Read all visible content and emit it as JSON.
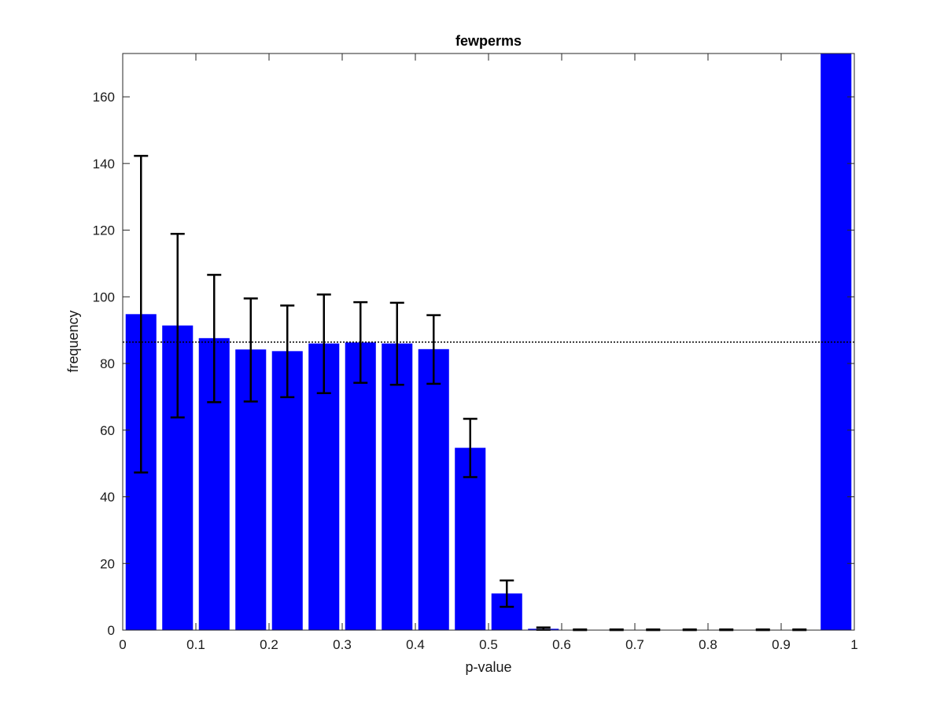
{
  "chart_data": {
    "type": "bar",
    "title": "fewperms",
    "xlabel": "p-value",
    "ylabel": "frequency",
    "xlim": [
      0,
      1
    ],
    "ylim": [
      0,
      173
    ],
    "xticks": [
      "0",
      "0.1",
      "0.2",
      "0.3",
      "0.4",
      "0.5",
      "0.6",
      "0.7",
      "0.8",
      "0.9",
      "1"
    ],
    "yticks": [
      "0",
      "20",
      "40",
      "60",
      "80",
      "100",
      "120",
      "140",
      "160"
    ],
    "x": [
      0.025,
      0.075,
      0.125,
      0.175,
      0.225,
      0.275,
      0.325,
      0.375,
      0.425,
      0.475,
      0.525,
      0.575,
      0.625,
      0.675,
      0.725,
      0.775,
      0.825,
      0.875,
      0.925,
      0.975
    ],
    "values": [
      94.8,
      91.4,
      87.6,
      84.2,
      83.7,
      86.0,
      86.3,
      86.0,
      84.3,
      54.7,
      11.0,
      0.4,
      0.1,
      0.1,
      0.1,
      0.1,
      0.1,
      0.1,
      0.1,
      173
    ],
    "error_lower": [
      47.3,
      63.8,
      68.4,
      68.6,
      69.9,
      71.1,
      74.2,
      73.6,
      73.9,
      45.9,
      7.0,
      0.1,
      0.0,
      0.0,
      0.0,
      0.0,
      0.0,
      0.0,
      0.0,
      null
    ],
    "error_upper": [
      142.3,
      118.9,
      106.6,
      99.5,
      97.4,
      100.7,
      98.4,
      98.2,
      94.5,
      63.4,
      14.9,
      0.8,
      0.2,
      0.2,
      0.2,
      0.2,
      0.2,
      0.2,
      0.2,
      null
    ],
    "reference_line": 86.4,
    "bar_color": "#0000ff",
    "error_color": "#000000",
    "grid": false,
    "legend": "none"
  }
}
